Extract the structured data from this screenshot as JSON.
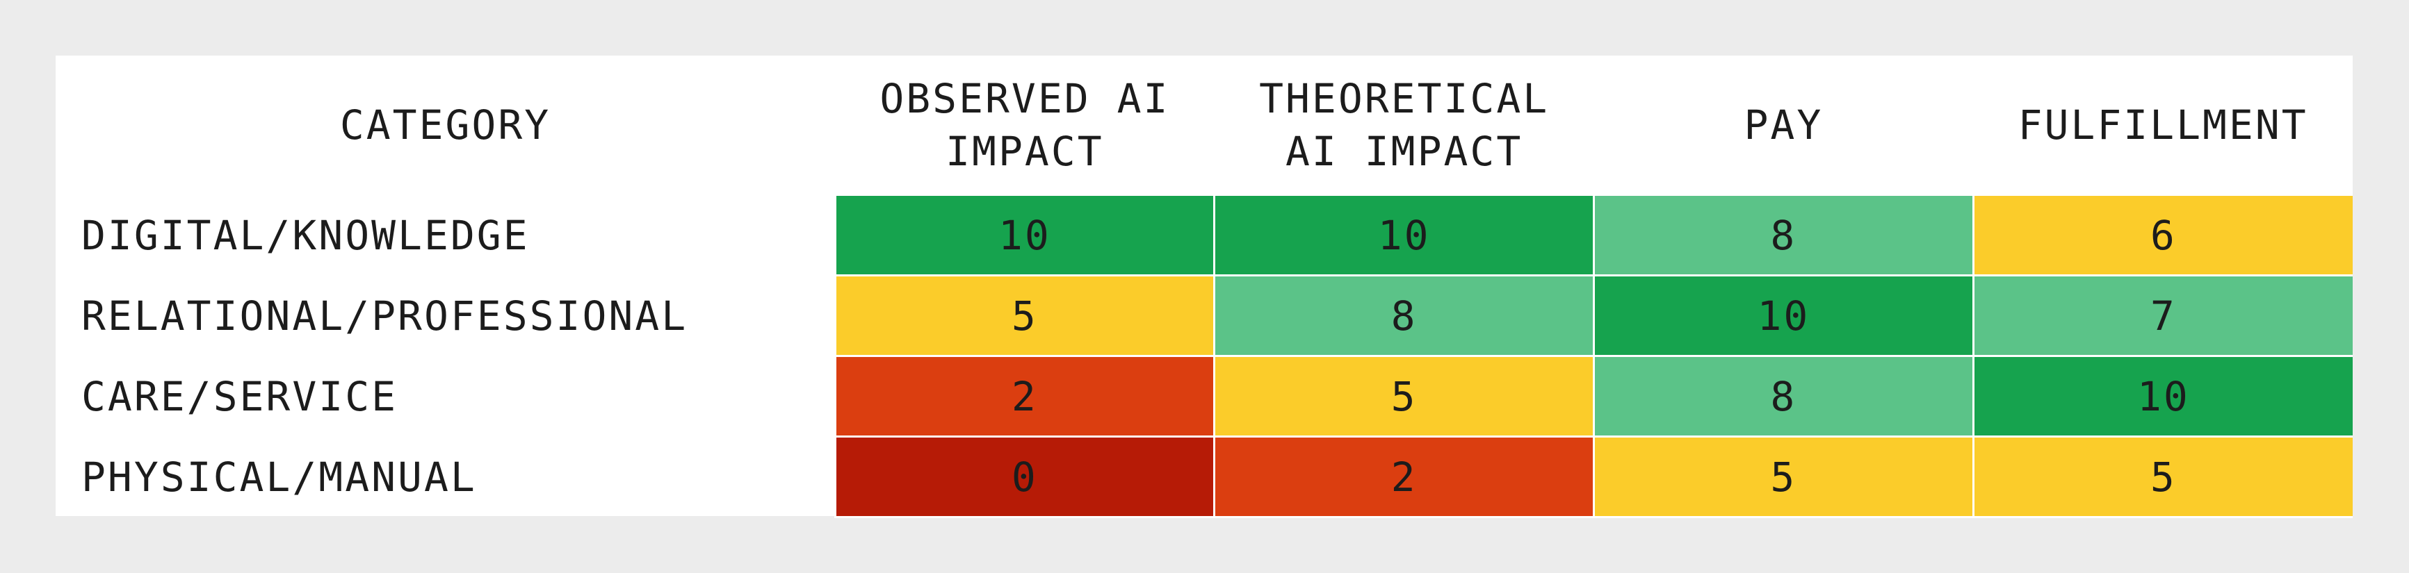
{
  "table": {
    "header": [
      "CATEGORY",
      "OBSERVED AI IMPACT",
      "THEORETICAL AI IMPACT",
      "PAY",
      "FULFILLMENT"
    ],
    "rows": [
      {
        "category": "DIGITAL/KNOWLEDGE",
        "values": [
          10,
          10,
          8,
          6
        ],
        "colors": [
          "#16a34e",
          "#16a34e",
          "#5bc388",
          "#fbcc2a"
        ]
      },
      {
        "category": "RELATIONAL/PROFESSIONAL",
        "values": [
          5,
          8,
          10,
          7
        ],
        "colors": [
          "#fbcc2a",
          "#5bc388",
          "#16a34e",
          "#5bc388"
        ]
      },
      {
        "category": "CARE/SERVICE",
        "values": [
          2,
          5,
          8,
          10
        ],
        "colors": [
          "#db3e10",
          "#fbcc2a",
          "#5bc388",
          "#16a34e"
        ]
      },
      {
        "category": "PHYSICAL/MANUAL",
        "values": [
          0,
          2,
          5,
          5
        ],
        "colors": [
          "#b61b06",
          "#db3e10",
          "#fbcc2a",
          "#fbcc2a"
        ]
      }
    ]
  }
}
